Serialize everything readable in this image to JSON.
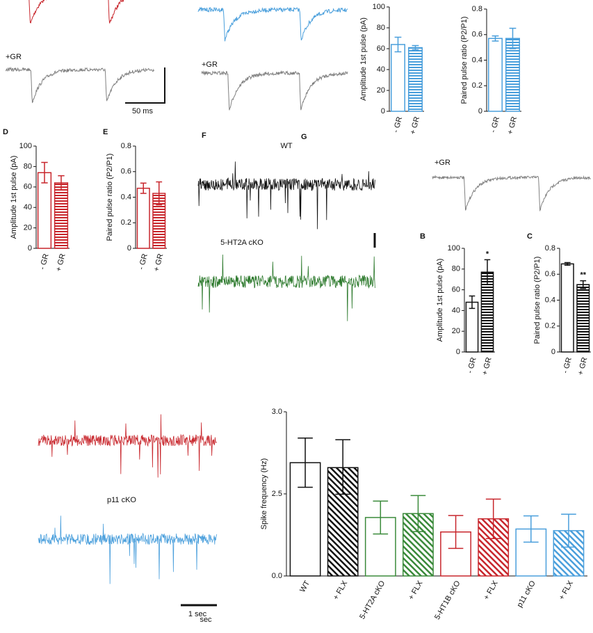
{
  "chart_data": [
    {
      "type": "bar",
      "y_label": "Amplitude 1st pulse (pA)",
      "categories": [
        "- GR",
        "+ GR"
      ],
      "values": [
        64,
        61
      ],
      "errors": [
        7,
        2
      ],
      "color": "#4a9fdc",
      "hatch": "horizontal",
      "ylim": [
        0,
        100
      ],
      "yticks": [
        0,
        20,
        40,
        60,
        80,
        100
      ]
    },
    {
      "type": "bar",
      "y_label": "Paired pulse ratio (P2/P1)",
      "categories": [
        "- GR",
        "+ GR"
      ],
      "values": [
        0.57,
        0.57
      ],
      "errors": [
        0.02,
        0.08
      ],
      "color": "#4a9fdc",
      "hatch": "horizontal",
      "ylim": [
        0,
        0.8
      ],
      "yticks": [
        0,
        0.2,
        0.4,
        0.6,
        0.8
      ]
    },
    {
      "type": "bar",
      "y_label": "Amplitude 1st pulse (pA)",
      "categories": [
        "- GR",
        "+ GR"
      ],
      "values": [
        74,
        64
      ],
      "errors": [
        10,
        7
      ],
      "color": "#c8262c",
      "hatch": "horizontal",
      "ylim": [
        0,
        100
      ],
      "yticks": [
        0,
        20,
        40,
        60,
        80,
        100
      ]
    },
    {
      "type": "bar",
      "y_label": "Paired pulse ratio (P2/P1)",
      "categories": [
        "- GR",
        "+ GR"
      ],
      "values": [
        0.47,
        0.43
      ],
      "errors": [
        0.04,
        0.09
      ],
      "color": "#c8262c",
      "hatch": "horizontal",
      "ylim": [
        0,
        0.8
      ],
      "yticks": [
        0,
        0.2,
        0.4,
        0.6,
        0.8
      ]
    },
    {
      "type": "bar",
      "y_label": "Amplitude 1st pulse (pA)",
      "categories": [
        "- GR",
        "+ GR"
      ],
      "values": [
        48,
        77
      ],
      "errors": [
        6,
        12
      ],
      "bar_labels": [
        null,
        "*"
      ],
      "color": "#111111",
      "hatch": "horizontal",
      "ylim": [
        0,
        100
      ],
      "yticks": [
        0,
        20,
        40,
        60,
        80,
        100
      ]
    },
    {
      "type": "bar",
      "y_label": "Paired pulse ratio (P2/P1)",
      "categories": [
        "- GR",
        "+ GR"
      ],
      "values": [
        0.68,
        0.52
      ],
      "errors": [
        0.01,
        0.03
      ],
      "bar_labels": [
        null,
        "**"
      ],
      "color": "#111111",
      "hatch": "horizontal",
      "ylim": [
        0,
        0.8
      ],
      "yticks": [
        0,
        0.2,
        0.4,
        0.6,
        0.8
      ]
    },
    {
      "type": "bar",
      "y_label": "Spike frequency (Hz)",
      "categories": [
        "WT",
        "+ FLX",
        "5-HT2A cKO",
        "+ FLX",
        "5-HT1B cKO",
        "+ FLX",
        "p11 cKO",
        "+ FLX"
      ],
      "values": [
        2.69,
        2.66,
        1.78,
        1.9,
        1.34,
        1.74,
        1.43,
        1.38
      ],
      "errors": [
        0.15,
        0.17,
        0.5,
        0.55,
        0.5,
        0.6,
        0.4,
        0.5
      ],
      "colors": [
        "#111111",
        "#111111",
        "#3a8a3a",
        "#3a8a3a",
        "#c8262c",
        "#c8262c",
        "#4a9fdc",
        "#4a9fdc"
      ],
      "hatch": "diagonal",
      "ylim": [
        0,
        3
      ],
      "yticks": [
        {
          "value": 0,
          "label": "0.0"
        },
        2.5,
        {
          "value": 3,
          "label": "3.0"
        }
      ]
    }
  ],
  "panels": {
    "gr_labels": [
      "+GR",
      "+GR",
      "+GR"
    ],
    "scale_time": "50 ms",
    "letters": [
      "D",
      "E",
      "F",
      "G",
      "B",
      "C"
    ],
    "trace_labels": [
      "WT",
      "5-HT2A cKO",
      "p11 cKO"
    ],
    "scale_sec": "1 sec",
    "scale_sec_small": "sec"
  }
}
